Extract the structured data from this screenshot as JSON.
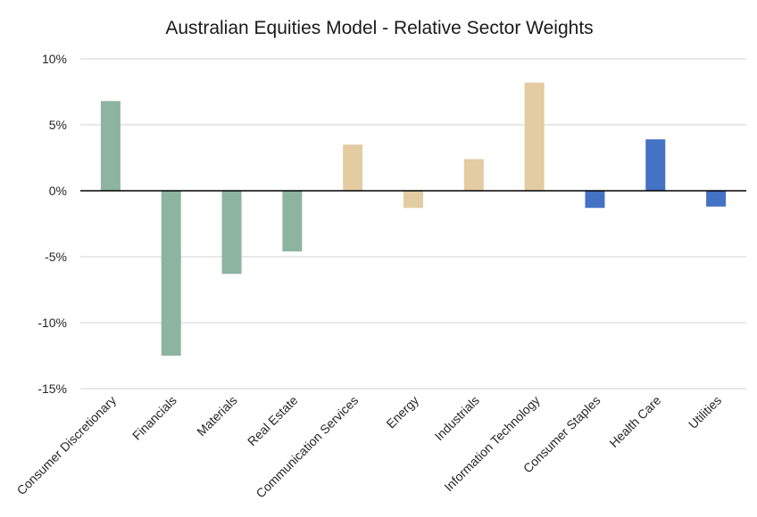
{
  "chart_data": {
    "type": "bar",
    "title": "Australian Equities Model - Relative Sector Weights",
    "xlabel": "",
    "ylabel": "",
    "categories": [
      "Consumer Discretionary",
      "Financials",
      "Materials",
      "Real Estate",
      "Communication Services",
      "Energy",
      "Industrials",
      "Information Technology",
      "Consumer Staples",
      "Health Care",
      "Utilities"
    ],
    "values": [
      6.8,
      -12.5,
      -6.3,
      -4.6,
      3.5,
      -1.3,
      2.4,
      8.2,
      -1.3,
      3.9,
      -1.2
    ],
    "bar_colors": [
      "#8db4a0",
      "#8db4a0",
      "#8db4a0",
      "#8db4a0",
      "#e3cca2",
      "#e3cca2",
      "#e3cca2",
      "#e3cca2",
      "#4472c4",
      "#4472c4",
      "#4472c4"
    ],
    "ylim": [
      -15,
      10
    ],
    "yticks": [
      10,
      5,
      0,
      -5,
      -10,
      -15
    ],
    "ytick_labels": [
      "10%",
      "5%",
      "0%",
      "-5%",
      "-10%",
      "-15%"
    ],
    "grid": true,
    "legend": "none"
  }
}
